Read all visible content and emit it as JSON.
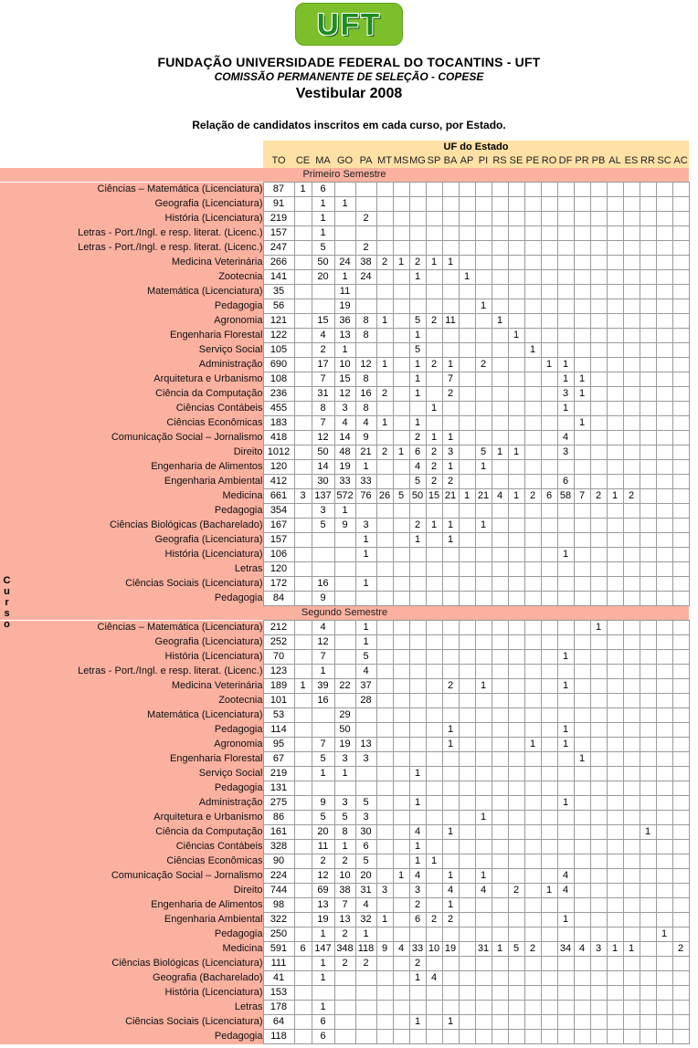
{
  "header": {
    "logo_text": "UFT",
    "title": "FUNDAÇÃO UNIVERSIDADE FEDERAL DO TOCANTINS - UFT",
    "subtitle": "COMISSÃO PERMANENTE DE SELEÇÃO - COPESE",
    "edition": "Vestibular 2008",
    "description": "Relação de candidatos inscritos em cada curso, por Estado."
  },
  "colors": {
    "logo_green_bg": "#7dbe2b",
    "logo_letter_green": "#1f8c1f",
    "uf_header_bg": "#ffe0a5",
    "course_label_bg": "#fab1a0",
    "grid_border": "#9a9a9a"
  },
  "table": {
    "corner_label": "Curso",
    "uf_header": "UF do Estado",
    "columns": [
      "TO",
      "CE",
      "MA",
      "GO",
      "PA",
      "MT",
      "MS",
      "MG",
      "SP",
      "BA",
      "AP",
      "PI",
      "RS",
      "SE",
      "PE",
      "RO",
      "DF",
      "PR",
      "PB",
      "AL",
      "ES",
      "RR",
      "SC",
      "AC"
    ],
    "sections": [
      {
        "title": "Primeiro Semestre",
        "rows": [
          {
            "label": "Ciências – Matemática (Licenciatura)",
            "values": {
              "TO": 87,
              "CE": 1,
              "MA": 6
            }
          },
          {
            "label": "Geografia (Licenciatura)",
            "values": {
              "TO": 91,
              "MA": 1,
              "GO": 1
            }
          },
          {
            "label": "História (Licenciatura)",
            "values": {
              "TO": 219,
              "MA": 1,
              "PA": 2
            }
          },
          {
            "label": "Letras - Port./Ingl. e resp. literat. (Licenc.)",
            "values": {
              "TO": 157,
              "MA": 1
            }
          },
          {
            "label": "Letras - Port./Ingl. e resp. literat. (Licenc.)",
            "values": {
              "TO": 247,
              "MA": 5,
              "PA": 2
            }
          },
          {
            "label": "Medicina Veterinária",
            "values": {
              "TO": 266,
              "MA": 50,
              "GO": 24,
              "PA": 38,
              "MT": 2,
              "MS": 1,
              "MG": 2,
              "SP": 1,
              "BA": 1
            }
          },
          {
            "label": "Zootecnia",
            "values": {
              "TO": 141,
              "MA": 20,
              "GO": 1,
              "PA": 24,
              "MG": 1,
              "AP": 1
            }
          },
          {
            "label": "Matemática (Licenciatura)",
            "values": {
              "TO": 35,
              "GO": 11
            }
          },
          {
            "label": "Pedagogia",
            "values": {
              "TO": 56,
              "GO": 19,
              "PI": 1
            }
          },
          {
            "label": "Agronomia",
            "values": {
              "TO": 121,
              "MA": 15,
              "GO": 36,
              "PA": 8,
              "MT": 1,
              "MG": 5,
              "SP": 2,
              "BA": 11,
              "RS": 1
            }
          },
          {
            "label": "Engenharia Florestal",
            "values": {
              "TO": 122,
              "MA": 4,
              "GO": 13,
              "PA": 8,
              "MG": 1,
              "SE": 1
            }
          },
          {
            "label": "Serviço Social",
            "values": {
              "TO": 105,
              "MA": 2,
              "GO": 1,
              "MG": 5,
              "PE": 1
            }
          },
          {
            "label": "Administração",
            "values": {
              "TO": 690,
              "MA": 17,
              "GO": 10,
              "PA": 12,
              "MT": 1,
              "MG": 1,
              "SP": 2,
              "BA": 1,
              "PI": 2,
              "RO": 1,
              "DF": 1
            }
          },
          {
            "label": "Arquitetura e Urbanismo",
            "values": {
              "TO": 108,
              "MA": 7,
              "GO": 15,
              "PA": 8,
              "MG": 1,
              "BA": 7,
              "DF": 1,
              "PR": 1
            }
          },
          {
            "label": "Ciência da Computação",
            "values": {
              "TO": 236,
              "MA": 31,
              "GO": 12,
              "PA": 16,
              "MT": 2,
              "MG": 1,
              "BA": 2,
              "DF": 3,
              "PR": 1
            }
          },
          {
            "label": "Ciências Contábeis",
            "values": {
              "TO": 455,
              "MA": 8,
              "GO": 3,
              "PA": 8,
              "SP": 1,
              "DF": 1
            }
          },
          {
            "label": "Ciências Econômicas",
            "values": {
              "TO": 183,
              "MA": 7,
              "GO": 4,
              "PA": 4,
              "MT": 1,
              "MG": 1,
              "PR": 1
            }
          },
          {
            "label": "Comunicação Social – Jornalismo",
            "values": {
              "TO": 418,
              "MA": 12,
              "GO": 14,
              "PA": 9,
              "MG": 2,
              "SP": 1,
              "BA": 1,
              "DF": 4
            }
          },
          {
            "label": "Direito",
            "values": {
              "TO": 1012,
              "MA": 50,
              "GO": 48,
              "PA": 21,
              "MT": 2,
              "MS": 1,
              "MG": 6,
              "SP": 2,
              "BA": 3,
              "PI": 5,
              "RS": 1,
              "SE": 1,
              "DF": 3
            }
          },
          {
            "label": "Engenharia de Alimentos",
            "values": {
              "TO": 120,
              "MA": 14,
              "GO": 19,
              "PA": 1,
              "MG": 4,
              "SP": 2,
              "BA": 1,
              "PI": 1
            }
          },
          {
            "label": "Engenharia Ambiental",
            "values": {
              "TO": 412,
              "MA": 30,
              "GO": 33,
              "PA": 33,
              "MG": 5,
              "SP": 2,
              "BA": 2,
              "DF": 6
            }
          },
          {
            "label": "Medicina",
            "values": {
              "TO": 661,
              "CE": 3,
              "MA": 137,
              "GO": 572,
              "PA": 76,
              "MT": 26,
              "MS": 5,
              "MG": 50,
              "SP": 15,
              "BA": 21,
              "AP": 1,
              "PI": 21,
              "RS": 4,
              "SE": 1,
              "PE": 2,
              "RO": 6,
              "DF": 58,
              "PR": 7,
              "PB": 2,
              "AL": 1,
              "ES": 2
            }
          },
          {
            "label": "Pedagogia",
            "values": {
              "TO": 354,
              "MA": 3,
              "GO": 1
            }
          },
          {
            "label": "Ciências Biológicas (Bacharelado)",
            "values": {
              "TO": 167,
              "MA": 5,
              "GO": 9,
              "PA": 3,
              "MG": 2,
              "SP": 1,
              "BA": 1,
              "PI": 1
            }
          },
          {
            "label": "Geografia (Licenciatura)",
            "values": {
              "TO": 157,
              "PA": 1,
              "MG": 1,
              "BA": 1
            }
          },
          {
            "label": "História (Licenciatura)",
            "values": {
              "TO": 106,
              "PA": 1,
              "DF": 1
            }
          },
          {
            "label": "Letras",
            "values": {
              "TO": 120
            }
          },
          {
            "label": "Ciências Sociais (Licenciatura)",
            "values": {
              "TO": 172,
              "MA": 16,
              "PA": 1
            }
          },
          {
            "label": "Pedagogia",
            "values": {
              "TO": 84,
              "MA": 9
            }
          }
        ]
      },
      {
        "title": "Segundo Semestre",
        "rows": [
          {
            "label": "Ciências – Matemática (Licenciatura)",
            "values": {
              "TO": 212,
              "MA": 4,
              "PA": 1,
              "PB": 1
            }
          },
          {
            "label": "Geografia (Licenciatura)",
            "values": {
              "TO": 252,
              "MA": 12,
              "PA": 1
            }
          },
          {
            "label": "História (Licenciatura)",
            "values": {
              "TO": 70,
              "MA": 7,
              "PA": 5,
              "DF": 1
            }
          },
          {
            "label": "Letras - Port./Ingl. e resp. literat. (Licenc.)",
            "values": {
              "TO": 123,
              "MA": 1,
              "PA": 4
            }
          },
          {
            "label": "Medicina Veterinária",
            "values": {
              "TO": 189,
              "CE": 1,
              "MA": 39,
              "GO": 22,
              "PA": 37,
              "BA": 2,
              "PI": 1,
              "DF": 1
            }
          },
          {
            "label": "Zootecnia",
            "values": {
              "TO": 101,
              "MA": 16,
              "PA": 28
            }
          },
          {
            "label": "Matemática (Licenciatura)",
            "values": {
              "TO": 53,
              "GO": 29
            }
          },
          {
            "label": "Pedagogia",
            "values": {
              "TO": 114,
              "GO": 50,
              "BA": 1,
              "DF": 1
            }
          },
          {
            "label": "Agronomia",
            "values": {
              "TO": 95,
              "MA": 7,
              "GO": 19,
              "PA": 13,
              "BA": 1,
              "PE": 1,
              "DF": 1
            }
          },
          {
            "label": "Engenharia Florestal",
            "values": {
              "TO": 67,
              "MA": 5,
              "GO": 3,
              "PA": 3,
              "PR": 1
            }
          },
          {
            "label": "Serviço Social",
            "values": {
              "TO": 219,
              "MA": 1,
              "GO": 1,
              "MG": 1
            }
          },
          {
            "label": "Pedagogia",
            "values": {
              "TO": 131
            }
          },
          {
            "label": "Administração",
            "values": {
              "TO": 275,
              "MA": 9,
              "GO": 3,
              "PA": 5,
              "MG": 1,
              "DF": 1
            }
          },
          {
            "label": "Arquitetura e Urbanismo",
            "values": {
              "TO": 86,
              "MA": 5,
              "GO": 5,
              "PA": 3,
              "PI": 1
            }
          },
          {
            "label": "Ciência da Computação",
            "values": {
              "TO": 161,
              "MA": 20,
              "GO": 8,
              "PA": 30,
              "MG": 4,
              "BA": 1,
              "RR": 1
            }
          },
          {
            "label": "Ciências Contábeis",
            "values": {
              "TO": 328,
              "MA": 11,
              "GO": 1,
              "PA": 6,
              "MG": 1
            }
          },
          {
            "label": "Ciências Econômicas",
            "values": {
              "TO": 90,
              "MA": 2,
              "GO": 2,
              "PA": 5,
              "MG": 1,
              "SP": 1
            }
          },
          {
            "label": "Comunicação Social – Jornalismo",
            "values": {
              "TO": 224,
              "MA": 12,
              "GO": 10,
              "PA": 20,
              "MS": 1,
              "MG": 4,
              "BA": 1,
              "PI": 1,
              "DF": 4
            }
          },
          {
            "label": "Direito",
            "values": {
              "TO": 744,
              "MA": 69,
              "GO": 38,
              "PA": 31,
              "MT": 3,
              "MG": 3,
              "BA": 4,
              "PI": 4,
              "SE": 2,
              "RO": 1,
              "DF": 4
            }
          },
          {
            "label": "Engenharia de Alimentos",
            "values": {
              "TO": 98,
              "MA": 13,
              "GO": 7,
              "PA": 4,
              "MG": 2,
              "BA": 1
            }
          },
          {
            "label": "Engenharia Ambiental",
            "values": {
              "TO": 322,
              "MA": 19,
              "GO": 13,
              "PA": 32,
              "MT": 1,
              "MG": 6,
              "SP": 2,
              "BA": 2,
              "DF": 1
            }
          },
          {
            "label": "Pedagogia",
            "values": {
              "TO": 250,
              "MA": 1,
              "GO": 2,
              "PA": 1,
              "SC": 1
            }
          },
          {
            "label": "Medicina",
            "values": {
              "TO": 591,
              "CE": 6,
              "MA": 147,
              "GO": 348,
              "PA": 118,
              "MT": 9,
              "MS": 4,
              "MG": 33,
              "SP": 10,
              "BA": 19,
              "PI": 31,
              "RS": 1,
              "SE": 5,
              "PE": 2,
              "DF": 34,
              "PR": 4,
              "PB": 3,
              "AL": 1,
              "ES": 1,
              "AC": 2
            }
          },
          {
            "label": "Ciências Biológicas (Licenciatura)",
            "values": {
              "TO": 111,
              "MA": 1,
              "GO": 2,
              "PA": 2,
              "MG": 2
            }
          },
          {
            "label": "Geografia (Bacharelado)",
            "values": {
              "TO": 41,
              "MA": 1,
              "MG": 1,
              "SP": 4
            }
          },
          {
            "label": "História (Licenciatura)",
            "values": {
              "TO": 153
            }
          },
          {
            "label": "Letras",
            "values": {
              "TO": 178,
              "MA": 1
            }
          },
          {
            "label": "Ciências Sociais (Licenciatura)",
            "values": {
              "TO": 64,
              "MA": 6,
              "MG": 1,
              "BA": 1
            }
          },
          {
            "label": "Pedagogia",
            "values": {
              "TO": 118,
              "MA": 6
            }
          }
        ]
      }
    ]
  }
}
